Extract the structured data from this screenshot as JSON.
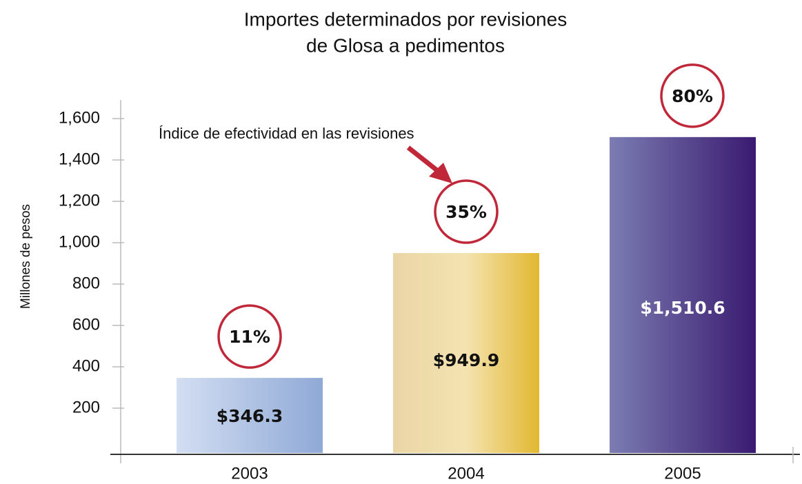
{
  "chart_data": {
    "type": "bar",
    "title": [
      "Importes determinados por revisiones",
      "de Glosa a pedimentos"
    ],
    "y_label": "Millones de pesos",
    "annotation": "Índice de efectividad en las revisiones",
    "categories": [
      "2003",
      "2004",
      "2005"
    ],
    "values": [
      346.3,
      949.9,
      1510.6
    ],
    "value_labels": [
      "$346.3",
      "$949.9",
      "$1,510.6"
    ],
    "circle_labels": [
      "11%",
      "35%",
      "80%"
    ],
    "colors": [
      [
        "#d3def2",
        "#8fa9d6"
      ],
      [
        "#ead5a6",
        "#f4e3b0",
        "#e2b830"
      ],
      [
        "#7b7db2",
        "#3a1a70"
      ]
    ],
    "value_label_colors": [
      "#111111",
      "#111111",
      "#ffffff"
    ],
    "circle_color": "#c0283a",
    "ylim": [
      0,
      1600
    ],
    "yticks": [
      200,
      400,
      600,
      800,
      {
        "value": 1000,
        "label": "1,000"
      },
      {
        "value": 1200,
        "label": "1,200"
      },
      {
        "value": 1400,
        "label": "1,400"
      },
      {
        "value": 1600,
        "label": "1,600"
      }
    ]
  }
}
